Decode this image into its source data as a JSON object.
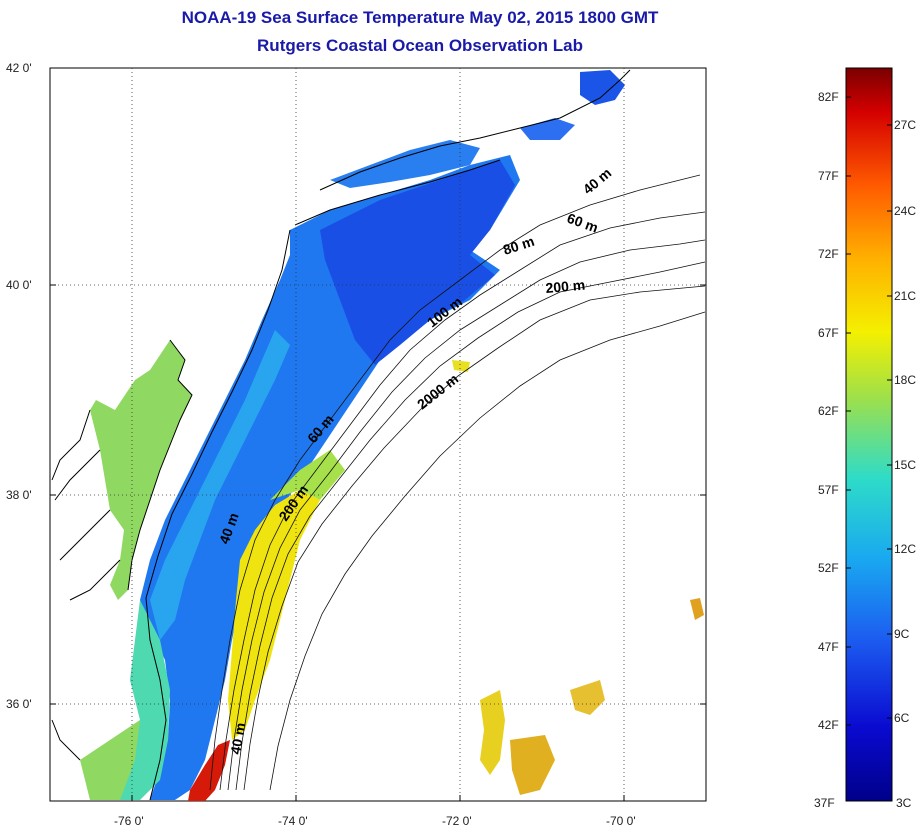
{
  "title": "NOAA-19 Sea Surface Temperature May 02, 2015 1800 GMT",
  "subtitle": "Rutgers Coastal Ocean Observation Lab",
  "map": {
    "lon_range": [
      -77.0,
      -69.0
    ],
    "lat_range": [
      35.0,
      42.0
    ],
    "lon_ticks": [
      {
        "value": -76,
        "label": "-76 0'"
      },
      {
        "value": -74,
        "label": "-74 0'"
      },
      {
        "value": -72,
        "label": "-72 0'"
      },
      {
        "value": -70,
        "label": "-70 0'"
      }
    ],
    "lat_ticks": [
      {
        "value": 42,
        "label": "42 0'"
      },
      {
        "value": 40,
        "label": "40 0'"
      },
      {
        "value": 38,
        "label": "38 0'"
      },
      {
        "value": 36,
        "label": "36 0'"
      }
    ],
    "grid": "dotted",
    "isobath_labels": [
      "40 m",
      "60 m",
      "80 m",
      "200 m",
      "100 m",
      "2000 m",
      "60 m",
      "200 m",
      "40 m",
      "40 m"
    ]
  },
  "colorbar": {
    "fahrenheit_labels": [
      "82F",
      "77F",
      "72F",
      "67F",
      "62F",
      "57F",
      "52F",
      "47F",
      "42F",
      "37F"
    ],
    "celsius_labels": [
      "27C",
      "24C",
      "21C",
      "18C",
      "15C",
      "12C",
      "9C",
      "6C",
      "3C"
    ],
    "colors": [
      "#7a0000",
      "#d40000",
      "#ff5a00",
      "#ffb000",
      "#f4f000",
      "#9ee04a",
      "#2edcc8",
      "#19a8f0",
      "#1c5cf0",
      "#0a0ad0",
      "#00008a"
    ]
  }
}
